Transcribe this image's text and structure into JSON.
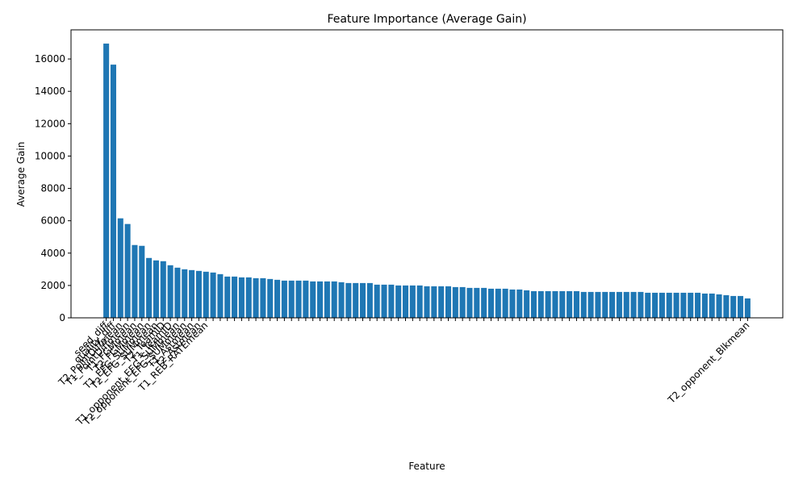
{
  "chart_data": {
    "type": "bar",
    "title": "Feature Importance (Average Gain)",
    "x_label": "Feature",
    "y_label": "Average Gain",
    "color": "#1f77b4",
    "categories": [
      "seed_diff",
      "quality_diff",
      "T2_PointDiffmean",
      "T1_PointDiffmean",
      "T1_FGMmean",
      "T2_FGMmean",
      "T1_EFG_SUMmean",
      "T2_EFG_SUMmean",
      "T2_TeamID",
      "T1_TeamID",
      "T1_opponent_EFG_SUMmean",
      "T2_opponent_EFG_SUMmean",
      "T1_Astmean",
      "T2_Astmean",
      "T1_REB_RATEmean",
      null,
      null,
      null,
      null,
      null,
      null,
      null,
      null,
      null,
      null,
      null,
      null,
      null,
      null,
      null,
      null,
      null,
      null,
      null,
      null,
      null,
      null,
      null,
      null,
      null,
      null,
      null,
      null,
      null,
      null,
      null,
      null,
      null,
      null,
      null,
      null,
      null,
      null,
      null,
      null,
      null,
      null,
      null,
      null,
      null,
      null,
      null,
      null,
      null,
      null,
      null,
      null,
      null,
      null,
      null,
      null,
      null,
      null,
      null,
      null,
      null,
      null,
      null,
      null,
      null,
      null,
      null,
      null,
      null,
      null,
      null,
      null,
      null,
      null,
      null,
      "T2_opponent_Blkmean"
    ],
    "values": [
      16950,
      15650,
      6150,
      5800,
      4500,
      4450,
      3700,
      3550,
      3500,
      3250,
      3100,
      3000,
      2950,
      2900,
      2850,
      2800,
      2700,
      2550,
      2550,
      2500,
      2500,
      2450,
      2450,
      2400,
      2350,
      2300,
      2300,
      2300,
      2300,
      2250,
      2250,
      2250,
      2250,
      2200,
      2150,
      2150,
      2150,
      2150,
      2050,
      2050,
      2050,
      2000,
      2000,
      2000,
      2000,
      1950,
      1950,
      1950,
      1950,
      1900,
      1900,
      1850,
      1850,
      1850,
      1800,
      1800,
      1800,
      1750,
      1750,
      1700,
      1650,
      1650,
      1650,
      1650,
      1650,
      1650,
      1650,
      1600,
      1600,
      1600,
      1600,
      1600,
      1600,
      1600,
      1600,
      1600,
      1550,
      1550,
      1550,
      1550,
      1550,
      1550,
      1550,
      1550,
      1500,
      1500,
      1450,
      1400,
      1350,
      1350,
      1200
    ],
    "ylim": [
      0,
      17800
    ],
    "yticks": [
      0,
      2000,
      4000,
      6000,
      8000,
      10000,
      12000,
      14000,
      16000
    ]
  }
}
